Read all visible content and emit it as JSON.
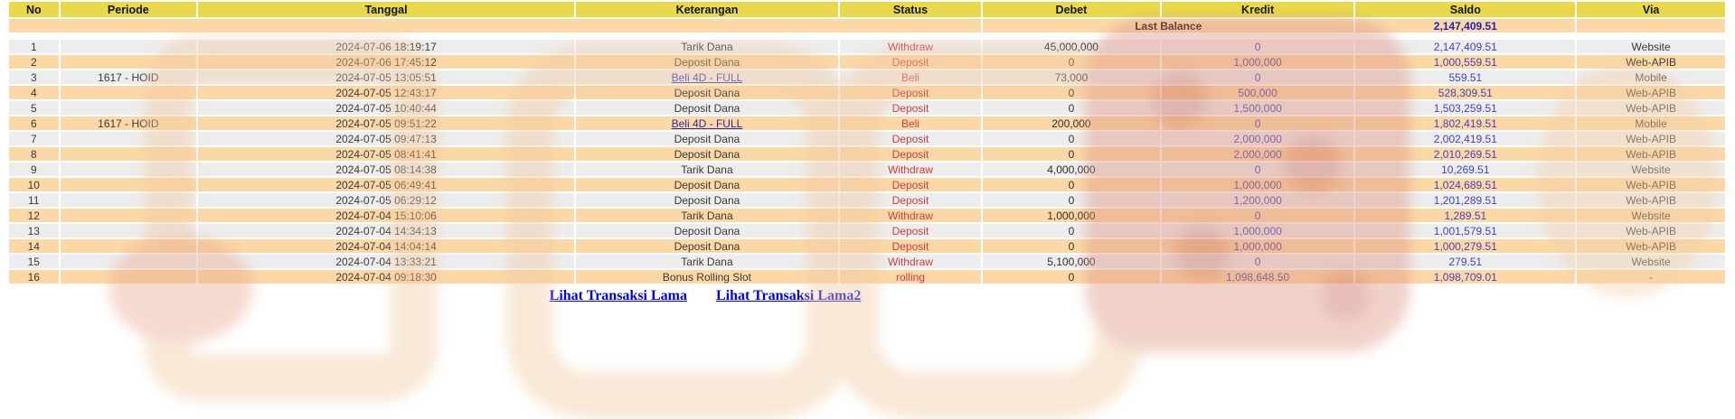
{
  "table": {
    "columns": [
      "No",
      "Periode",
      "Tanggal",
      "Keterangan",
      "Status",
      "Debet",
      "Kredit",
      "Saldo",
      "Via"
    ],
    "last_balance": {
      "label": "Last Balance",
      "value": "2,147,409.51"
    },
    "rows": [
      {
        "no": "1",
        "periode": "",
        "tanggal": "2024-07-06 18:19:17",
        "keterangan": "Tarik Dana",
        "keterangan_is_link": false,
        "status": "Withdraw",
        "debet": "45,000,000",
        "kredit": "0",
        "saldo": "2,147,409.51",
        "via": "Website"
      },
      {
        "no": "2",
        "periode": "",
        "tanggal": "2024-07-06 17:45:12",
        "keterangan": "Deposit Dana",
        "keterangan_is_link": false,
        "status": "Deposit",
        "debet": "0",
        "kredit": "1,000,000",
        "saldo": "1,000,559.51",
        "via": "Web-APIB"
      },
      {
        "no": "3",
        "periode": "1617 - HOID",
        "tanggal": "2024-07-05 13:05:51",
        "keterangan": "Beli 4D - FULL",
        "keterangan_is_link": true,
        "status": "Beli",
        "debet": "73,000",
        "kredit": "0",
        "saldo": "559.51",
        "via": "Mobile"
      },
      {
        "no": "4",
        "periode": "",
        "tanggal": "2024-07-05 12:43:17",
        "keterangan": "Deposit Dana",
        "keterangan_is_link": false,
        "status": "Deposit",
        "debet": "0",
        "kredit": "500,000",
        "saldo": "528,309.51",
        "via": "Web-APIB"
      },
      {
        "no": "5",
        "periode": "",
        "tanggal": "2024-07-05 10:40:44",
        "keterangan": "Deposit Dana",
        "keterangan_is_link": false,
        "status": "Deposit",
        "debet": "0",
        "kredit": "1,500,000",
        "saldo": "1,503,259.51",
        "via": "Web-APIB"
      },
      {
        "no": "6",
        "periode": "1617 - HOID",
        "tanggal": "2024-07-05 09:51:22",
        "keterangan": "Beli 4D - FULL",
        "keterangan_is_link": true,
        "status": "Beli",
        "debet": "200,000",
        "kredit": "0",
        "saldo": "1,802,419.51",
        "via": "Mobile"
      },
      {
        "no": "7",
        "periode": "",
        "tanggal": "2024-07-05 09:47:13",
        "keterangan": "Deposit Dana",
        "keterangan_is_link": false,
        "status": "Deposit",
        "debet": "0",
        "kredit": "2,000,000",
        "saldo": "2,002,419.51",
        "via": "Web-APIB"
      },
      {
        "no": "8",
        "periode": "",
        "tanggal": "2024-07-05 08:41:41",
        "keterangan": "Deposit Dana",
        "keterangan_is_link": false,
        "status": "Deposit",
        "debet": "0",
        "kredit": "2,000,000",
        "saldo": "2,010,269.51",
        "via": "Web-APIB"
      },
      {
        "no": "9",
        "periode": "",
        "tanggal": "2024-07-05 08:14:38",
        "keterangan": "Tarik Dana",
        "keterangan_is_link": false,
        "status": "Withdraw",
        "debet": "4,000,000",
        "kredit": "0",
        "saldo": "10,269.51",
        "via": "Website"
      },
      {
        "no": "10",
        "periode": "",
        "tanggal": "2024-07-05 06:49:41",
        "keterangan": "Deposit Dana",
        "keterangan_is_link": false,
        "status": "Deposit",
        "debet": "0",
        "kredit": "1,000,000",
        "saldo": "1,024,689.51",
        "via": "Web-APIB"
      },
      {
        "no": "11",
        "periode": "",
        "tanggal": "2024-07-05 06:29:12",
        "keterangan": "Deposit Dana",
        "keterangan_is_link": false,
        "status": "Deposit",
        "debet": "0",
        "kredit": "1,200,000",
        "saldo": "1,201,289.51",
        "via": "Web-APIB"
      },
      {
        "no": "12",
        "periode": "",
        "tanggal": "2024-07-04 15:10:06",
        "keterangan": "Tarik Dana",
        "keterangan_is_link": false,
        "status": "Withdraw",
        "debet": "1,000,000",
        "kredit": "0",
        "saldo": "1,289.51",
        "via": "Website"
      },
      {
        "no": "13",
        "periode": "",
        "tanggal": "2024-07-04 14:34:13",
        "keterangan": "Deposit Dana",
        "keterangan_is_link": false,
        "status": "Deposit",
        "debet": "0",
        "kredit": "1,000,000",
        "saldo": "1,001,579.51",
        "via": "Web-APIB"
      },
      {
        "no": "14",
        "periode": "",
        "tanggal": "2024-07-04 14:04:14",
        "keterangan": "Deposit Dana",
        "keterangan_is_link": false,
        "status": "Deposit",
        "debet": "0",
        "kredit": "1,000,000",
        "saldo": "1,000,279.51",
        "via": "Web-APIB"
      },
      {
        "no": "15",
        "periode": "",
        "tanggal": "2024-07-04 13:33:21",
        "keterangan": "Tarik Dana",
        "keterangan_is_link": false,
        "status": "Withdraw",
        "debet": "5,100,000",
        "kredit": "0",
        "saldo": "279.51",
        "via": "Website"
      },
      {
        "no": "16",
        "periode": "",
        "tanggal": "2024-07-04 09:18:30",
        "keterangan": "Bonus Rolling Slot",
        "keterangan_is_link": false,
        "status": "rolling",
        "debet": "0",
        "kredit": "1,098,648.50",
        "saldo": "1,098,709.01",
        "via": "-"
      }
    ]
  },
  "footer": {
    "links": [
      {
        "label": "Lihat Transaksi Lama"
      },
      {
        "label": "Lihat Transaksi Lama2"
      }
    ]
  },
  "colors": {
    "header_bg": "#e8d84a",
    "row_odd": "#ededed",
    "row_even": "#fbd8a6",
    "status_red": "#cc4040",
    "amount_blue": "#4343c0",
    "balance_blue": "#2323bb",
    "link_blue": "#2b2ba8",
    "footer_link_blue": "#0000e6"
  }
}
